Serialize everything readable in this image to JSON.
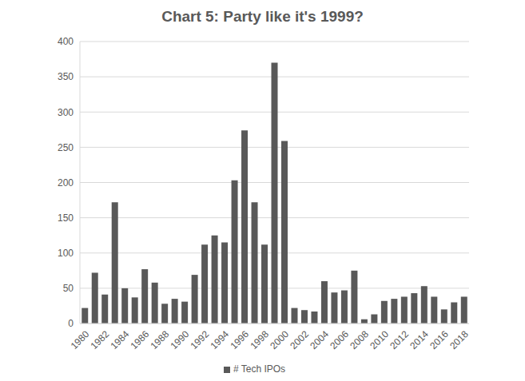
{
  "chart_data": {
    "type": "bar",
    "title": "Chart 5: Party like it's 1999?",
    "categories": [
      "1980",
      null,
      "1982",
      null,
      "1984",
      null,
      "1986",
      null,
      "1988",
      null,
      "1990",
      null,
      "1992",
      null,
      "1994",
      null,
      "1996",
      null,
      "1998",
      null,
      "2000",
      null,
      "2002",
      null,
      "2004",
      null,
      "2006",
      null,
      "2008",
      null,
      "2010",
      null,
      "2012",
      null,
      "2014",
      null,
      "2016",
      null,
      "2018"
    ],
    "series": [
      {
        "name": "# Tech IPOs",
        "color": "#595959",
        "values": [
          22,
          72,
          41,
          172,
          50,
          37,
          77,
          58,
          28,
          35,
          31,
          69,
          112,
          125,
          115,
          203,
          274,
          172,
          112,
          370,
          259,
          22,
          19,
          17,
          60,
          44,
          47,
          75,
          6,
          13,
          32,
          35,
          38,
          43,
          53,
          38,
          20,
          30,
          38
        ]
      }
    ],
    "ylim": [
      0,
      400
    ],
    "yticks": [
      0,
      50,
      100,
      150,
      200,
      250,
      300,
      350,
      400
    ],
    "grid": true,
    "legend": "bottom"
  }
}
